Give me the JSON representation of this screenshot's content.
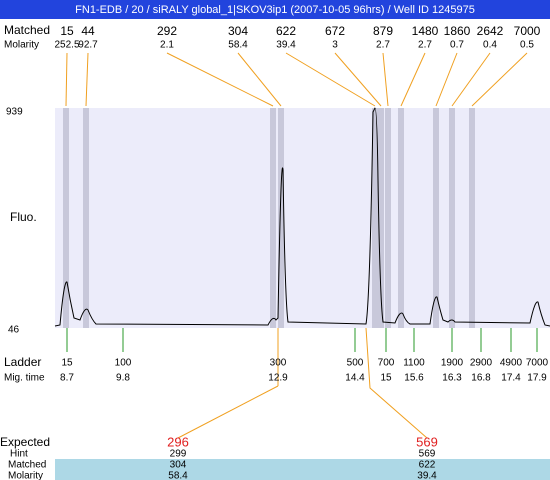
{
  "header": {
    "title": "FN1-EDB / 20 / siRALY global_1|SKOV3ip1 (2007-10-05 96hrs) / Well ID 1245975"
  },
  "peaks": {
    "size_label": "Matched",
    "molarity_label": "Molarity",
    "sizes": [
      15,
      44,
      292,
      304,
      622,
      672,
      879,
      1480,
      1860,
      2642,
      7000
    ],
    "molarities": [
      252.5,
      92.7,
      2.1,
      58.4,
      39.4,
      3,
      2.7,
      2.7,
      0.7,
      0.4,
      0.5
    ]
  },
  "axis": {
    "label": "Fluo.",
    "max": 939,
    "min": 46
  },
  "ladder": {
    "label": "Ladder",
    "time_label": "Mig. time",
    "sizes": [
      15,
      100,
      300,
      500,
      700,
      1100,
      1900,
      2900,
      4900,
      7000
    ],
    "times": [
      8.7,
      9.8,
      12.9,
      14.4,
      15,
      15.6,
      16.3,
      16.8,
      17.4,
      17.9
    ]
  },
  "expected": {
    "label": "Expected",
    "values": [
      296,
      569
    ],
    "hint_label": "Hint",
    "hints": [
      299,
      569
    ],
    "matched_label": "Matched",
    "matched": [
      304,
      622
    ],
    "molarity_label": "Molarity",
    "molarities": [
      58.4,
      39.4
    ]
  }
}
